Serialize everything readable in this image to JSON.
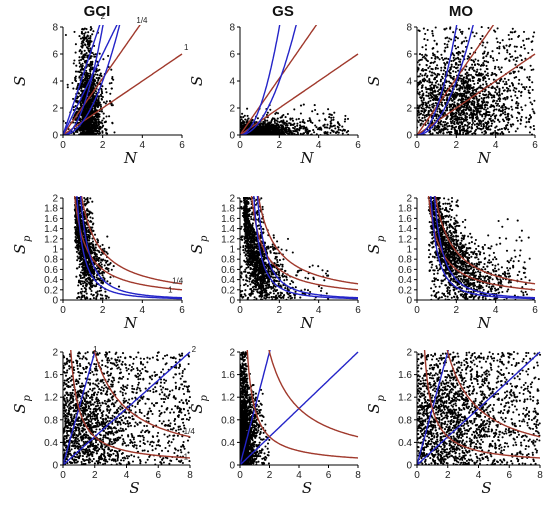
{
  "figure": {
    "column_titles": [
      "GCI",
      "GS",
      "MO"
    ]
  },
  "colors": {
    "points": "#000000",
    "red_curve": "#a0392c",
    "blue_curve": "#2424c8",
    "axis": "#000000"
  },
  "chart_data": [
    {
      "id": "gci-s-n",
      "type": "scatter",
      "column": "GCI",
      "row": 1,
      "xlabel": "N",
      "ylabel": "S",
      "xlim": [
        0,
        6
      ],
      "ylim": [
        0,
        8
      ],
      "xticks": [
        "0",
        "2",
        "4",
        "6"
      ],
      "yticks": [
        "0",
        "2",
        "4",
        "6",
        "8"
      ],
      "annotations": [
        {
          "text": "2"
        },
        {
          "text": "1/4"
        },
        {
          "text": "1"
        }
      ],
      "lines": [
        {
          "color": "red",
          "kind": "ray",
          "slope": 1
        },
        {
          "color": "red",
          "kind": "ray",
          "slope": 2.1
        },
        {
          "color": "blue",
          "kind": "ray",
          "slope": 3.0
        },
        {
          "color": "blue",
          "kind": "ray",
          "slope": 4.4
        },
        {
          "color": "blue",
          "kind": "quad",
          "coef": 2.0
        },
        {
          "color": "blue",
          "kind": "quad",
          "coef": 1.0
        }
      ],
      "scatter": {
        "x_range": [
          0.4,
          2.6
        ],
        "y_range": [
          0,
          8
        ],
        "density": "high"
      }
    },
    {
      "id": "gs-s-n",
      "type": "scatter",
      "column": "GS",
      "row": 1,
      "xlabel": "N",
      "ylabel": "S",
      "xlim": [
        0,
        6
      ],
      "ylim": [
        0,
        8
      ],
      "xticks": [
        "0",
        "2",
        "4",
        "6"
      ],
      "yticks": [
        "0",
        "2",
        "4",
        "6",
        "8"
      ],
      "annotations": [],
      "lines": [
        {
          "color": "red",
          "kind": "ray",
          "slope": 1
        },
        {
          "color": "red",
          "kind": "ray",
          "slope": 2.1
        },
        {
          "color": "blue",
          "kind": "quad",
          "coef": 2.0
        },
        {
          "color": "blue",
          "kind": "quad",
          "coef": 1.0
        }
      ],
      "scatter": {
        "x_range": [
          0,
          5.5
        ],
        "y_range": [
          0,
          2
        ],
        "density": "high"
      }
    },
    {
      "id": "mo-s-n",
      "type": "scatter",
      "column": "MO",
      "row": 1,
      "xlabel": "N",
      "ylabel": "S",
      "xlim": [
        0,
        6
      ],
      "ylim": [
        0,
        8
      ],
      "xticks": [
        "0",
        "2",
        "4",
        "6"
      ],
      "yticks": [
        "0",
        "2",
        "4",
        "6",
        "8"
      ],
      "annotations": [],
      "lines": [
        {
          "color": "red",
          "kind": "ray",
          "slope": 1
        },
        {
          "color": "red",
          "kind": "ray",
          "slope": 2.1
        },
        {
          "color": "blue",
          "kind": "quad",
          "coef": 2.0
        },
        {
          "color": "blue",
          "kind": "quad",
          "coef": 1.0
        }
      ],
      "scatter": {
        "x_range": [
          0,
          6
        ],
        "y_range": [
          0,
          8
        ],
        "density": "high"
      }
    },
    {
      "id": "gci-sp-n",
      "type": "scatter",
      "column": "GCI",
      "row": 2,
      "xlabel": "N",
      "ylabel": "S",
      "ylabel_sub": "p",
      "xlim": [
        0,
        6
      ],
      "ylim": [
        0,
        2
      ],
      "xticks": [
        "0",
        "2",
        "4",
        "6"
      ],
      "yticks": [
        "0",
        "0.2",
        "0.4",
        "0.6",
        "0.8",
        "1",
        "1.2",
        "1.4",
        "1.6",
        "1.8",
        "2"
      ],
      "annotations": [
        {
          "text": "1/4"
        },
        {
          "text": "1"
        }
      ],
      "lines": [
        {
          "color": "red",
          "kind": "inv",
          "k": 1.9
        },
        {
          "color": "red",
          "kind": "inv",
          "k": 1.2
        },
        {
          "color": "blue",
          "kind": "inv2",
          "k": 1.0
        },
        {
          "color": "blue",
          "kind": "inv2",
          "k": 1.6
        }
      ],
      "scatter": {
        "x_range": [
          0.5,
          2.6
        ],
        "y_range": [
          0,
          2
        ],
        "density": "high"
      }
    },
    {
      "id": "gs-sp-n",
      "type": "scatter",
      "column": "GS",
      "row": 2,
      "xlabel": "N",
      "ylabel": "S",
      "ylabel_sub": "p",
      "xlim": [
        0,
        6
      ],
      "ylim": [
        0,
        2
      ],
      "xticks": [
        "0",
        "2",
        "4",
        "6"
      ],
      "yticks": [
        "0",
        "0.2",
        "0.4",
        "0.6",
        "0.8",
        "1",
        "1.2",
        "1.4",
        "1.6",
        "1.8",
        "2"
      ],
      "annotations": [],
      "lines": [
        {
          "color": "red",
          "kind": "inv",
          "k": 1.9
        },
        {
          "color": "red",
          "kind": "inv",
          "k": 1.2
        },
        {
          "color": "blue",
          "kind": "inv2",
          "k": 1.0
        },
        {
          "color": "blue",
          "kind": "inv2",
          "k": 1.6
        }
      ],
      "scatter": {
        "x_range": [
          0,
          4.5
        ],
        "y_range": [
          0,
          2
        ],
        "density": "high"
      }
    },
    {
      "id": "mo-sp-n",
      "type": "scatter",
      "column": "MO",
      "row": 2,
      "xlabel": "N",
      "ylabel": "S",
      "ylabel_sub": "p",
      "xlim": [
        0,
        6
      ],
      "ylim": [
        0,
        2
      ],
      "xticks": [
        "0",
        "2",
        "4",
        "6"
      ],
      "yticks": [
        "0",
        "0.2",
        "0.4",
        "0.6",
        "0.8",
        "1",
        "1.2",
        "1.4",
        "1.6",
        "1.8",
        "2"
      ],
      "annotations": [],
      "lines": [
        {
          "color": "red",
          "kind": "inv",
          "k": 1.9
        },
        {
          "color": "red",
          "kind": "inv",
          "k": 1.2
        },
        {
          "color": "blue",
          "kind": "inv2",
          "k": 1.0
        },
        {
          "color": "blue",
          "kind": "inv2",
          "k": 1.6
        }
      ],
      "scatter": {
        "x_range": [
          0.5,
          6
        ],
        "y_range": [
          0,
          2
        ],
        "density": "high"
      }
    },
    {
      "id": "gci-sp-s",
      "type": "scatter",
      "column": "GCI",
      "row": 3,
      "xlabel": "S",
      "ylabel": "S",
      "ylabel_sub": "p",
      "xlim": [
        0,
        8
      ],
      "ylim": [
        0,
        2
      ],
      "xticks": [
        "0",
        "2",
        "4",
        "6",
        "8"
      ],
      "yticks": [
        "0",
        "0.4",
        "0.8",
        "1.2",
        "1.6",
        "2"
      ],
      "annotations": [
        {
          "text": "1"
        },
        {
          "text": "2"
        },
        {
          "text": "1/4"
        },
        {
          "text": "1"
        }
      ],
      "lines": [
        {
          "color": "blue",
          "kind": "ray",
          "slope": 1.0
        },
        {
          "color": "blue",
          "kind": "ray",
          "slope": 0.25
        },
        {
          "color": "red",
          "kind": "inv",
          "k": 1.0
        },
        {
          "color": "red",
          "kind": "inv",
          "k": 4.0
        }
      ],
      "scatter": {
        "x_range": [
          0,
          8
        ],
        "y_range": [
          0,
          2
        ],
        "density": "high"
      }
    },
    {
      "id": "gs-sp-s",
      "type": "scatter",
      "column": "GS",
      "row": 3,
      "xlabel": "S",
      "ylabel": "S",
      "ylabel_sub": "p",
      "xlim": [
        0,
        8
      ],
      "ylim": [
        0,
        2
      ],
      "xticks": [
        "0",
        "2",
        "4",
        "6",
        "8"
      ],
      "yticks": [
        "0",
        "0.4",
        "0.8",
        "1.2",
        "1.6",
        "2"
      ],
      "annotations": [],
      "lines": [
        {
          "color": "blue",
          "kind": "ray",
          "slope": 1.0
        },
        {
          "color": "blue",
          "kind": "ray",
          "slope": 0.25
        },
        {
          "color": "red",
          "kind": "inv",
          "k": 1.0
        },
        {
          "color": "red",
          "kind": "inv",
          "k": 4.0
        }
      ],
      "scatter": {
        "x_range": [
          0,
          2
        ],
        "y_range": [
          0,
          2
        ],
        "density": "high"
      }
    },
    {
      "id": "mo-sp-s",
      "type": "scatter",
      "column": "MO",
      "row": 3,
      "xlabel": "S",
      "ylabel": "S",
      "ylabel_sub": "p",
      "xlim": [
        0,
        8
      ],
      "ylim": [
        0,
        2
      ],
      "xticks": [
        "0",
        "2",
        "4",
        "6",
        "8"
      ],
      "yticks": [
        "0",
        "0.4",
        "0.8",
        "1.2",
        "1.6",
        "2"
      ],
      "annotations": [],
      "lines": [
        {
          "color": "blue",
          "kind": "ray",
          "slope": 1.0
        },
        {
          "color": "blue",
          "kind": "ray",
          "slope": 0.25
        },
        {
          "color": "red",
          "kind": "inv",
          "k": 1.0
        },
        {
          "color": "red",
          "kind": "inv",
          "k": 4.0
        }
      ],
      "scatter": {
        "x_range": [
          0,
          8
        ],
        "y_range": [
          0,
          2
        ],
        "density": "high"
      }
    }
  ]
}
